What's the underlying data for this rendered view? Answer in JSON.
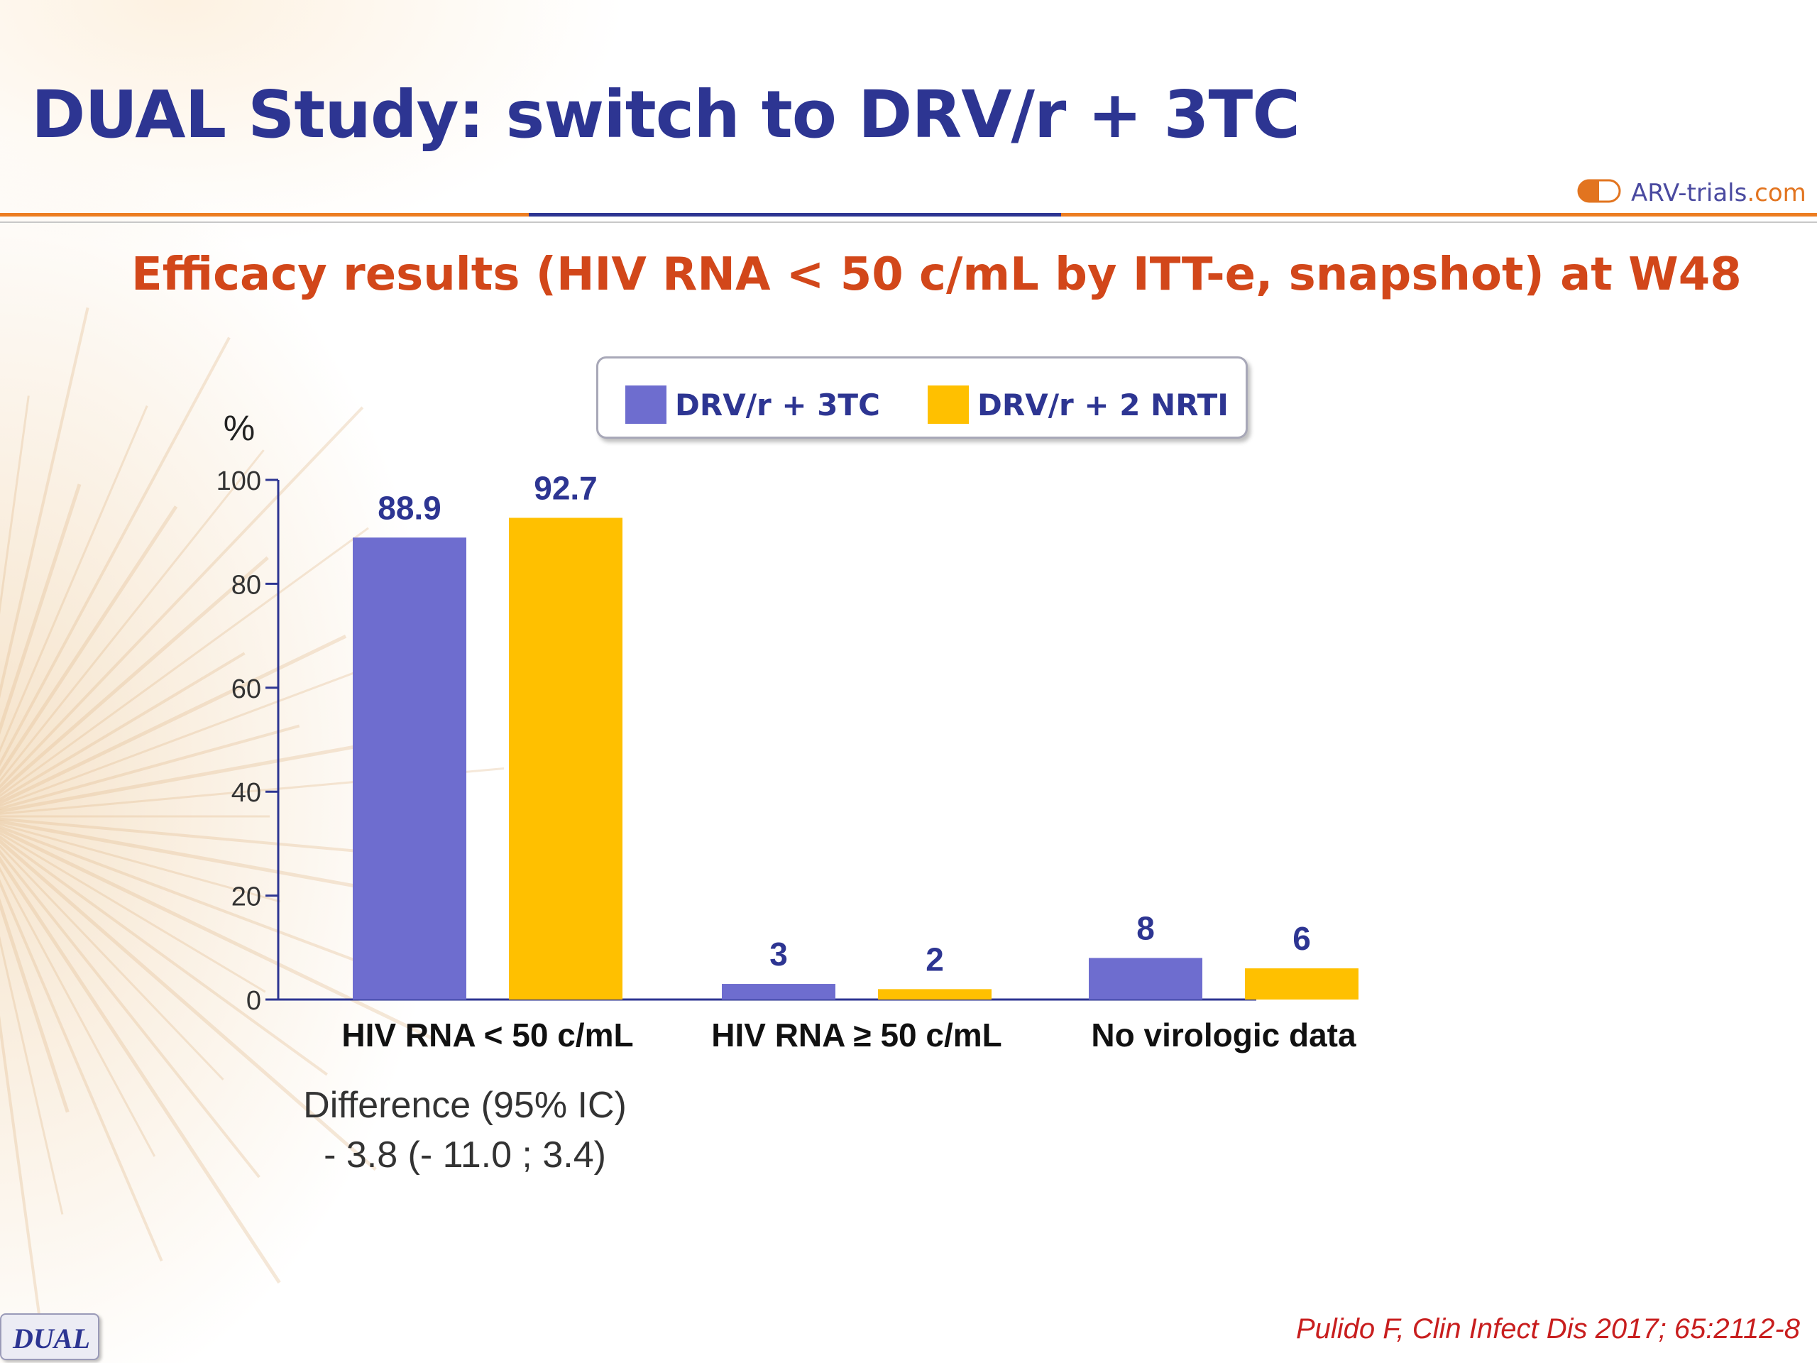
{
  "slide": {
    "title": "DUAL Study: switch to DRV/r + 3TC",
    "subtitle": "Efficacy results (HIV RNA < 50 c/mL by ITT-e, snapshot) at W48",
    "logo": {
      "brand": "ARV-trials",
      "domain": ".com"
    },
    "difference_label": "Difference (95% IC)",
    "difference_value": "- 3.8 (- 11.0 ; 3.4)",
    "badge": "DUAL",
    "citation": "Pulido F, Clin Infect Dis 2017; 65:2112-8"
  },
  "colors": {
    "title": "#2d3592",
    "subtitle": "#d2471a",
    "series_1": "#6e6dcf",
    "series_2": "#ffc000",
    "accent_orange": "#ec7d21",
    "citation": "#c81e1e"
  },
  "chart_data": {
    "type": "bar",
    "title": "",
    "ylabel": "%",
    "xlabel": "",
    "ylim": [
      0,
      100
    ],
    "yticks": [
      0,
      20,
      40,
      60,
      80,
      100
    ],
    "categories": [
      "HIV RNA < 50 c/mL",
      "HIV RNA ≥ 50 c/mL",
      "No virologic data"
    ],
    "series": [
      {
        "name": "DRV/r + 3TC",
        "values": [
          88.9,
          3,
          8
        ],
        "labels": [
          "88.9",
          "3",
          "8"
        ]
      },
      {
        "name": "DRV/r + 2 NRTI",
        "values": [
          92.7,
          2,
          6
        ],
        "labels": [
          "92.7",
          "2",
          "6"
        ]
      }
    ],
    "legend": "top"
  }
}
